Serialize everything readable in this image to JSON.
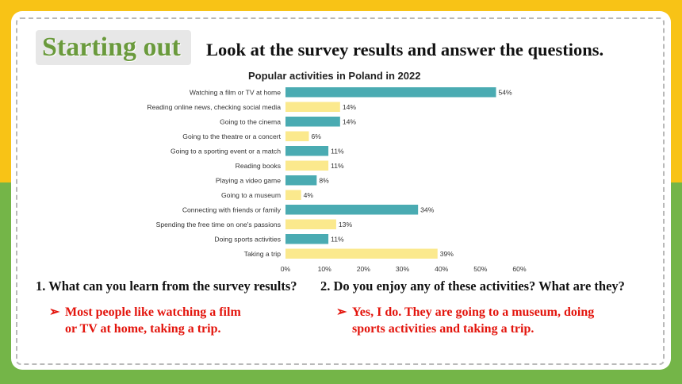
{
  "header": {
    "title": "Starting out",
    "instruction": "Look at the survey results and answer the questions."
  },
  "chart_data": {
    "type": "bar",
    "orientation": "horizontal",
    "title": "Popular activities in Poland in 2022",
    "xlim": [
      0,
      60
    ],
    "x_ticks": [
      "0%",
      "10%",
      "20%",
      "30%",
      "40%",
      "50%",
      "60%"
    ],
    "grid": false,
    "categories": [
      "Watching a film or TV at home",
      "Reading online news, checking social media",
      "Going to the cinema",
      "Going to the theatre or a concert",
      "Going to a sporting event or a match",
      "Reading books",
      "Playing a video game",
      "Going to a museum",
      "Connecting with friends or family",
      "Spending the free time on one's passions",
      "Doing sports activities",
      "Taking a trip"
    ],
    "values": [
      54,
      14,
      14,
      6,
      11,
      11,
      8,
      4,
      34,
      13,
      11,
      39
    ],
    "value_labels": [
      "54%",
      "14%",
      "14%",
      "6%",
      "11%",
      "11%",
      "8%",
      "4%",
      "34%",
      "13%",
      "11%",
      "39%"
    ],
    "bar_colors": [
      "#4AABB2",
      "#FBE98D",
      "#4AABB2",
      "#FBE98D",
      "#4AABB2",
      "#FBE98D",
      "#4AABB2",
      "#FBE98D",
      "#4AABB2",
      "#FBE98D",
      "#4AABB2",
      "#FBE98D"
    ]
  },
  "questions": {
    "q1": "1. What can you learn from the survey results?",
    "q2": "2. Do you enjoy any of these activities? What are they?"
  },
  "answers": {
    "arrow": "➢",
    "a1_line1": "Most people like watching a film",
    "a1_line2": "or TV at home, taking a trip.",
    "a2_line1": "Yes, I do. They are going to a museum, doing",
    "a2_line2": "sports activities and taking a trip."
  },
  "colors": {
    "top_band": "#F8C316",
    "bottom_band": "#74B548",
    "title_green": "#6a9a3c",
    "answer_red": "#e3140c"
  }
}
